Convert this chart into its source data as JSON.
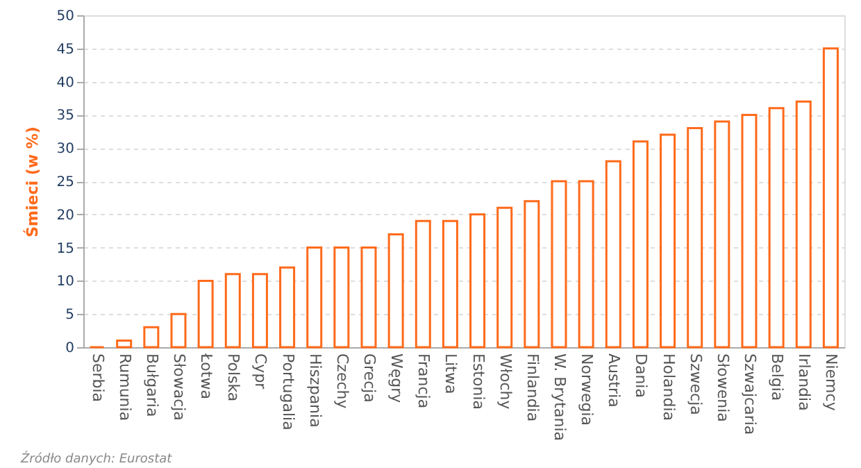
{
  "chart_data": {
    "type": "bar",
    "ylabel": "Śmieci (w %)",
    "categories": [
      "Serbia",
      "Rumunia",
      "Bułgaria",
      "Słowacja",
      "Łotwa",
      "Polska",
      "Cypr",
      "Portugalia",
      "Hiszpania",
      "Czechy",
      "Grecja",
      "Węgry",
      "Francja",
      "Litwa",
      "Estonia",
      "Włochy",
      "Finlandia",
      "W. Brytania",
      "Norwegia",
      "Austria",
      "Dania",
      "Holandia",
      "Szwecja",
      "Słowenia",
      "Szwajcaria",
      "Belgia",
      "Irlandia",
      "Niemcy"
    ],
    "values": [
      0,
      1,
      3,
      5,
      10,
      11,
      11,
      12,
      15,
      15,
      15,
      17,
      19,
      19,
      20,
      21,
      22,
      25,
      25,
      28,
      31,
      32,
      33,
      34,
      35,
      36,
      37,
      45
    ],
    "color": "#ff6a1a",
    "ylim": [
      0,
      50
    ],
    "yticks": [
      0,
      5,
      10,
      15,
      20,
      25,
      30,
      35,
      40,
      45,
      50
    ],
    "grid": "y",
    "annotations": [
      "Źródło danych: Eurostat"
    ]
  }
}
